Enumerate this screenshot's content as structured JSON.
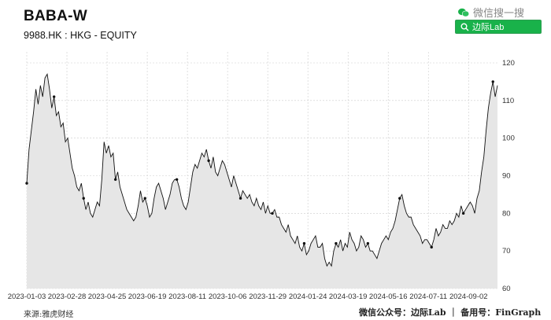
{
  "header": {
    "title": "BABA-W",
    "subtitle": "9988.HK : HKG - EQUITY"
  },
  "wechat": {
    "search_label": "微信搜一搜",
    "button_label": "边际Lab"
  },
  "footer": {
    "source": "来源:雅虎财经",
    "credit": "微信公众号：边际Lab ｜ 备用号：FinGraph"
  },
  "colors": {
    "line": "#111111",
    "fill": "#e6e6e6",
    "grid": "#cccccc",
    "accent": "#19b24a"
  },
  "chart_data": {
    "type": "area",
    "title": "BABA-W",
    "xlabel": "",
    "ylabel": "",
    "ylim": [
      60,
      120
    ],
    "yticks": [
      60,
      70,
      80,
      90,
      100,
      110,
      120
    ],
    "xticks": [
      "2023-01-03",
      "2023-02-28",
      "2023-04-25",
      "2023-06-19",
      "2023-08-11",
      "2023-10-06",
      "2023-11-29",
      "2024-01-24",
      "2024-03-19",
      "2024-05-16",
      "2024-07-11",
      "2024-09-02"
    ],
    "grid": true,
    "series": [
      {
        "values": [
          88,
          97,
          102,
          107,
          113,
          109,
          114,
          111,
          116,
          117,
          113,
          108,
          111,
          106,
          107,
          103,
          104,
          99,
          100,
          96,
          92,
          90,
          87,
          86,
          88,
          84,
          81,
          83,
          80,
          79,
          81,
          83,
          82,
          89,
          99,
          96,
          98,
          95,
          96,
          89,
          91,
          87,
          85,
          83,
          81,
          80,
          79,
          78,
          79,
          82,
          86,
          83,
          84,
          82,
          79,
          80,
          84,
          87,
          88,
          86,
          84,
          81,
          83,
          85,
          88,
          89,
          89,
          87,
          84,
          82,
          81,
          83,
          87,
          91,
          93,
          92,
          94,
          96,
          95,
          97,
          94,
          92,
          95,
          91,
          90,
          92,
          94,
          93,
          91,
          89,
          87,
          90,
          88,
          86,
          84,
          86,
          85,
          84,
          85,
          83,
          82,
          84,
          82,
          81,
          83,
          80,
          82,
          80,
          80,
          81,
          79,
          79,
          77,
          76,
          75,
          77,
          74,
          73,
          72,
          74,
          71,
          70,
          72,
          69,
          70,
          72,
          73,
          74,
          71,
          71,
          72,
          68,
          66,
          67,
          66,
          70,
          72,
          71,
          73,
          70,
          72,
          71,
          75,
          73,
          72,
          70,
          71,
          74,
          73,
          71,
          72,
          70,
          70,
          69,
          68,
          70,
          72,
          73,
          74,
          73,
          75,
          76,
          78,
          81,
          84,
          85,
          82,
          80,
          79,
          79,
          77,
          76,
          75,
          74,
          72,
          73,
          73,
          72,
          71,
          73,
          76,
          74,
          75,
          77,
          76,
          76,
          78,
          77,
          78,
          80,
          79,
          82,
          80,
          81,
          82,
          83,
          82,
          80,
          84,
          86,
          91,
          95,
          102,
          108,
          112,
          115,
          111,
          114
        ],
        "markers": [
          0,
          12,
          25,
          39,
          52,
          66,
          80,
          94,
          108,
          122,
          136,
          150,
          164,
          178,
          192,
          205
        ]
      }
    ]
  }
}
